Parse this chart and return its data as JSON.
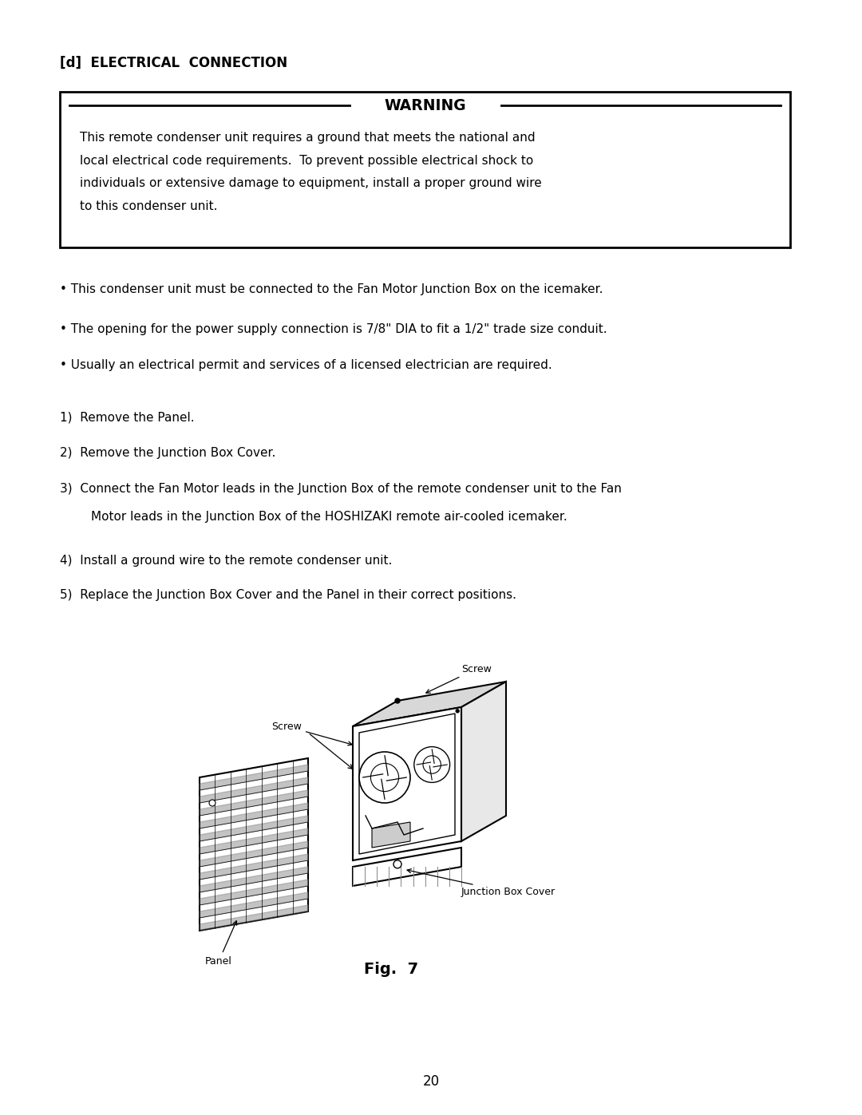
{
  "title": "[d]  ELECTRICAL  CONNECTION",
  "warning_title": "WARNING",
  "warning_text_line1": "This remote condenser unit requires a ground that meets the national and",
  "warning_text_line2": "local electrical code requirements.  To prevent possible electrical shock to",
  "warning_text_line3": "individuals or extensive damage to equipment, install a proper ground wire",
  "warning_text_line4": "to this condenser unit.",
  "bullet1": "• This condenser unit must be connected to the Fan Motor Junction Box on the icemaker.",
  "bullet2": "• The opening for the power supply connection is 7/8\" DIA to fit a 1/2\" trade size conduit.",
  "bullet3": "• Usually an electrical permit and services of a licensed electrician are required.",
  "step1": "1)  Remove the Panel.",
  "step2": "2)  Remove the Junction Box Cover.",
  "step3a": "3)  Connect the Fan Motor leads in the Junction Box of the remote condenser unit to the Fan",
  "step3b": "        Motor leads in the Junction Box of the HOSHIZAKI remote air-cooled icemaker.",
  "step4": "4)  Install a ground wire to the remote condenser unit.",
  "step5": "5)  Replace the Junction Box Cover and the Panel in their correct positions.",
  "fig_caption": "Fig.  7",
  "page_number": "20",
  "bg_color": "#ffffff",
  "text_color": "#000000"
}
